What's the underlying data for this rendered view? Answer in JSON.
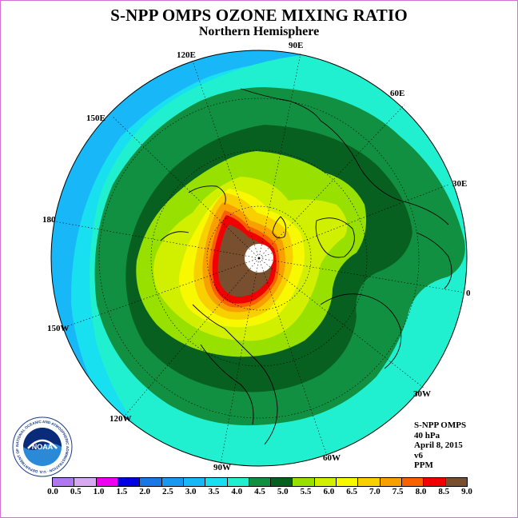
{
  "title": "S-NPP OMPS OZONE MIXING RATIO",
  "subtitle": "Northern Hemisphere",
  "longitude_labels": {
    "lon_120e": "120E",
    "lon_90e": "90E",
    "lon_60e": "60E",
    "lon_150e": "150E",
    "lon_30e": "30E",
    "lon_180": "180",
    "lon_0": "0",
    "lon_150w": "150W",
    "lon_30w": "30W",
    "lon_120w": "120W",
    "lon_60w": "60W",
    "lon_90w": "90W"
  },
  "info": {
    "instrument": "S-NPP OMPS",
    "pressure": "40 hPa",
    "date": "April 8, 2015",
    "version": "v6",
    "units": "PPM"
  },
  "logo": {
    "text": "NOAA",
    "ring_text": "NATIONAL OCEANIC AND ATMOSPHERIC ADMINISTRATION · U.S. DEPARTMENT OF COMMERCE"
  },
  "colorbar": {
    "ticks": [
      "0.0",
      "0.5",
      "1.0",
      "1.5",
      "2.0",
      "2.5",
      "3.0",
      "3.5",
      "4.0",
      "4.5",
      "5.0",
      "5.5",
      "6.0",
      "6.5",
      "7.0",
      "7.5",
      "8.0",
      "8.5",
      "9.0"
    ],
    "colors": [
      "#b078f0",
      "#d8a8f0",
      "#f000f0",
      "#0000e0",
      "#1878e8",
      "#1898f0",
      "#18b8f8",
      "#18e0f0",
      "#20f0d0",
      "#109040",
      "#086020",
      "#98e000",
      "#d0f000",
      "#f8f800",
      "#f8d000",
      "#f8a000",
      "#f86000",
      "#f00000",
      "#785030"
    ]
  },
  "map": {
    "projection": "north polar stereographic",
    "contour_levels_ppm": [
      {
        "level": "3.0",
        "color": "#18b8f8"
      },
      {
        "level": "3.5",
        "color": "#18e0f0"
      },
      {
        "level": "4.0",
        "color": "#20f0d0"
      },
      {
        "level": "4.5",
        "color": "#109040"
      },
      {
        "level": "5.0",
        "color": "#086020"
      },
      {
        "level": "5.5",
        "color": "#98e000"
      },
      {
        "level": "6.0",
        "color": "#d0f000"
      },
      {
        "level": "6.5",
        "color": "#f8f800"
      },
      {
        "level": "7.0",
        "color": "#f8d000"
      },
      {
        "level": "7.5",
        "color": "#f8a000"
      },
      {
        "level": "8.0",
        "color": "#f86000"
      },
      {
        "level": "8.5",
        "color": "#f00000"
      },
      {
        "level": "9.0",
        "color": "#785030"
      }
    ]
  }
}
